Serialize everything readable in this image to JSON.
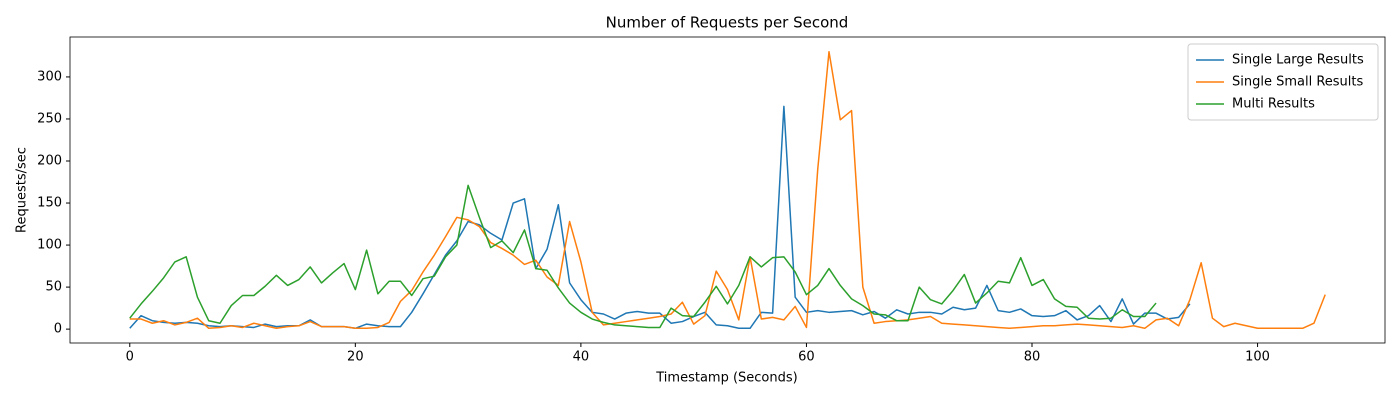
{
  "chart_data": {
    "type": "line",
    "title": "Number of Requests per Second",
    "x_label": "Timestamp (Seconds)",
    "y_label": "Requests/sec",
    "xlim": [
      -5.3,
      111.3
    ],
    "ylim": [
      -16.5,
      347.5
    ],
    "xticks": [
      0,
      20,
      40,
      60,
      80,
      100
    ],
    "yticks": [
      0,
      50,
      100,
      150,
      200,
      250,
      300
    ],
    "grid": false,
    "legend": "upper right",
    "x": [
      0,
      1,
      2,
      3,
      4,
      5,
      6,
      7,
      8,
      9,
      10,
      11,
      12,
      13,
      14,
      15,
      16,
      17,
      18,
      19,
      20,
      21,
      22,
      23,
      24,
      25,
      26,
      27,
      28,
      29,
      30,
      31,
      32,
      33,
      34,
      35,
      36,
      37,
      38,
      39,
      40,
      41,
      42,
      43,
      44,
      45,
      46,
      47,
      48,
      49,
      50,
      51,
      52,
      53,
      54,
      55,
      56,
      57,
      58,
      59,
      60,
      61,
      62,
      63,
      64,
      65,
      66,
      67,
      68,
      69,
      70,
      71,
      72,
      73,
      74,
      75,
      76,
      77,
      78,
      79,
      80,
      81,
      82,
      83,
      84,
      85,
      86,
      87,
      88,
      89,
      90,
      91,
      92,
      93,
      94,
      95,
      96,
      97,
      98,
      99,
      100,
      101,
      102,
      103,
      104,
      105,
      106
    ],
    "series": [
      {
        "name": "Single Large Results",
        "color": "#1f77b4",
        "values": [
          1,
          16,
          10,
          8,
          7,
          8,
          7,
          4,
          3,
          4,
          3,
          2,
          6,
          3,
          4,
          4,
          11,
          3,
          3,
          3,
          1,
          6,
          4,
          3,
          3,
          20,
          42,
          65,
          88,
          105,
          128,
          124,
          114,
          106,
          150,
          155,
          72,
          95,
          148,
          55,
          35,
          20,
          18,
          12,
          19,
          21,
          19,
          19,
          7,
          9,
          15,
          20,
          5,
          4,
          1,
          1,
          20,
          19,
          265,
          38,
          20,
          22,
          20,
          21,
          22,
          17,
          21,
          13,
          23,
          18,
          20,
          20,
          18,
          26,
          23,
          25,
          52,
          22,
          20,
          24,
          16,
          15,
          16,
          22,
          11,
          16,
          28,
          9,
          36,
          6,
          19,
          19,
          12,
          14,
          30,
          null,
          null,
          null,
          null,
          null,
          null,
          null,
          null,
          null,
          null,
          null,
          null
        ]
      },
      {
        "name": "Single Small Results",
        "color": "#ff7f0e",
        "values": [
          12,
          12,
          7,
          10,
          5,
          8,
          13,
          1,
          2,
          4,
          2,
          7,
          4,
          1,
          3,
          4,
          9,
          3,
          3,
          3,
          1,
          1,
          2,
          8,
          33,
          46,
          68,
          88,
          110,
          133,
          130,
          122,
          103,
          96,
          88,
          77,
          82,
          62,
          52,
          128,
          80,
          20,
          5,
          7,
          9,
          11,
          13,
          15,
          18,
          32,
          6,
          16,
          69,
          47,
          11,
          86,
          12,
          14,
          11,
          27,
          2,
          190,
          330,
          249,
          260,
          50,
          7,
          9,
          10,
          11,
          13,
          15,
          7,
          6,
          5,
          4,
          3,
          2,
          1,
          2,
          3,
          4,
          4,
          5,
          6,
          5,
          4,
          3,
          2,
          4,
          1,
          11,
          13,
          4,
          35,
          79,
          13,
          3,
          7,
          4,
          1,
          1,
          1,
          1,
          1,
          7,
          41
        ]
      },
      {
        "name": "Multi Results",
        "color": "#2ca02c",
        "values": [
          13,
          30,
          45,
          61,
          80,
          86,
          38,
          10,
          7,
          28,
          40,
          40,
          51,
          64,
          52,
          59,
          74,
          55,
          67,
          78,
          47,
          94,
          42,
          57,
          57,
          40,
          60,
          63,
          86,
          100,
          171,
          133,
          97,
          105,
          91,
          118,
          72,
          70,
          49,
          31,
          20,
          12,
          8,
          5,
          4,
          3,
          2,
          2,
          25,
          16,
          15,
          32,
          51,
          30,
          52,
          86,
          74,
          85,
          86,
          68,
          41,
          52,
          72,
          52,
          36,
          28,
          18,
          17,
          10,
          10,
          50,
          35,
          30,
          46,
          65,
          31,
          43,
          57,
          55,
          85,
          52,
          59,
          36,
          27,
          26,
          13,
          12,
          13,
          23,
          15,
          15,
          31,
          null,
          null,
          null,
          null,
          null,
          null,
          null,
          null,
          null,
          null,
          null,
          null,
          null,
          null,
          null
        ]
      }
    ]
  }
}
